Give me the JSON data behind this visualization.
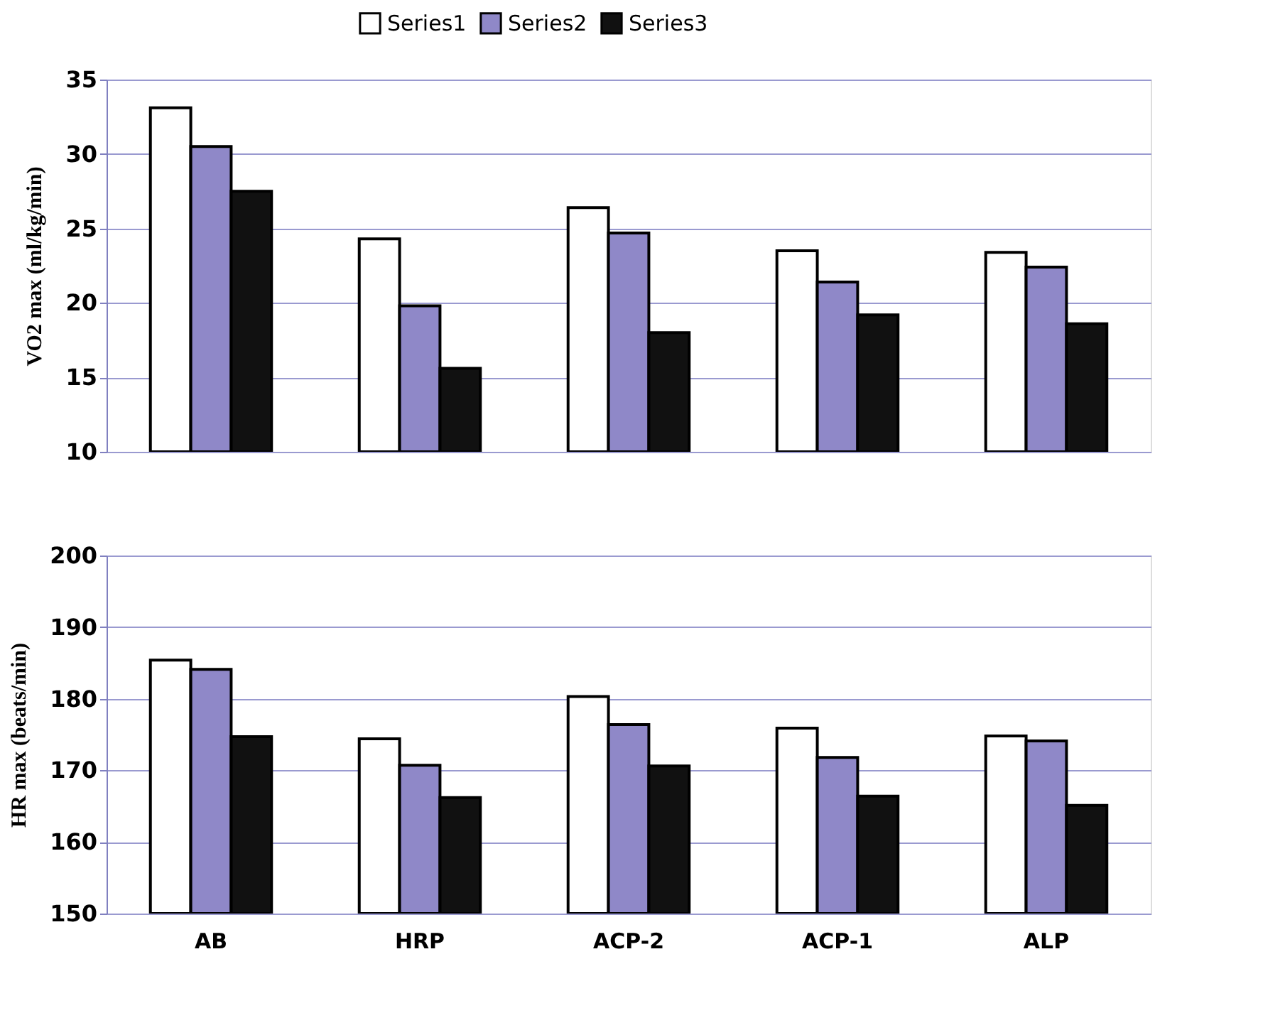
{
  "chart_data": [
    {
      "type": "bar",
      "ylabel": "VO2 max  (ml/kg/min)",
      "ylim": [
        10,
        35
      ],
      "yticks": [
        10,
        15,
        20,
        25,
        30,
        35
      ],
      "grid": "y",
      "legend": "top",
      "tick_labels": "y",
      "series": [
        {
          "name": "Series1",
          "color": "#ffffff",
          "values": [
            33.1,
            24.3,
            26.4,
            23.5,
            23.4
          ]
        },
        {
          "name": "Series2",
          "color": "#8f88c8",
          "values": [
            30.5,
            19.8,
            24.7,
            21.4,
            22.4
          ]
        },
        {
          "name": "Series3",
          "color": "#111111",
          "values": [
            27.5,
            15.6,
            18.0,
            19.2,
            18.6
          ]
        }
      ]
    },
    {
      "type": "bar",
      "ylabel": "HR max  (beats/min)",
      "categories": [
        "AB",
        "HRP",
        "ACP-2",
        "ACP-1",
        "ALP"
      ],
      "ylim": [
        150,
        200
      ],
      "yticks": [
        150,
        160,
        170,
        180,
        190,
        200
      ],
      "grid": "y",
      "series": [
        {
          "name": "Series1",
          "color": "#ffffff",
          "values": [
            185.4,
            174.4,
            180.3,
            175.9,
            174.8
          ]
        },
        {
          "name": "Series2",
          "color": "#8f88c8",
          "values": [
            184.1,
            170.7,
            176.4,
            171.8,
            174.1
          ]
        },
        {
          "name": "Series3",
          "color": "#111111",
          "values": [
            174.7,
            166.2,
            170.6,
            166.4,
            165.1
          ]
        }
      ]
    }
  ]
}
